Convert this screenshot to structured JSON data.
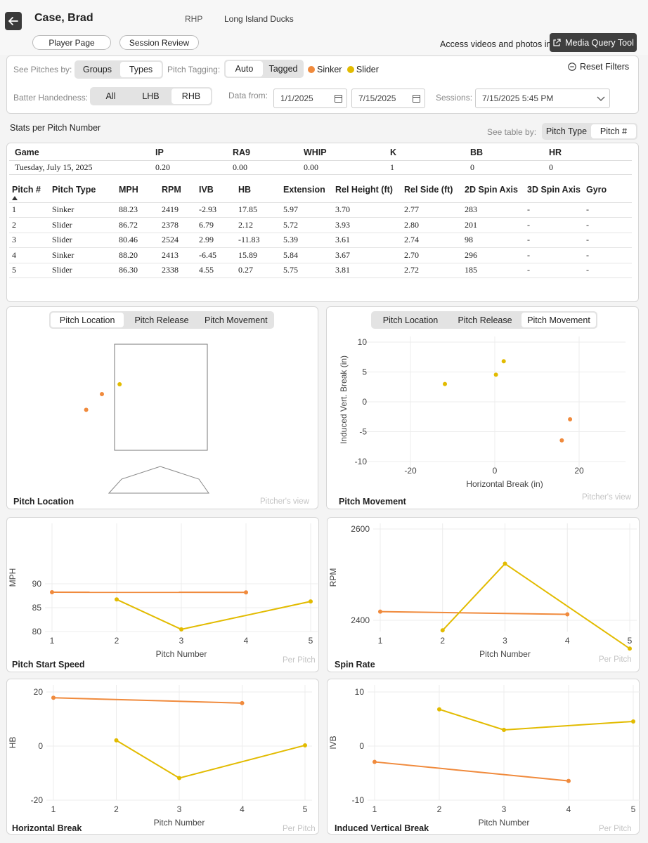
{
  "header": {
    "player_name": "Case, Brad",
    "hand": "RHP",
    "team": "Long Island Ducks",
    "player_page": "Player Page",
    "session_review": "Session Review",
    "access_text": "Access videos and photos in",
    "media_tool": "Media Query Tool"
  },
  "filters": {
    "see_pitches_by": "See Pitches by:",
    "groups": "Groups",
    "types": "Types",
    "pitch_tagging": "Pitch Tagging:",
    "auto": "Auto",
    "tagged": "Tagged",
    "legend": [
      {
        "label": "Sinker",
        "color": "#f08a3c"
      },
      {
        "label": "Slider",
        "color": "#e2bb00"
      }
    ],
    "reset": "Reset Filters",
    "batter_handedness": "Batter Handedness:",
    "hand_all": "All",
    "hand_lhb": "LHB",
    "hand_rhb": "RHB",
    "data_from": "Data from:",
    "date_from": "1/1/2025",
    "date_to": "7/15/2025",
    "sessions": "Sessions:",
    "session_value": "7/15/2025 5:45 PM"
  },
  "stats": {
    "title": "Stats per Pitch Number",
    "see_table_by": "See table by:",
    "pitch_type_btn": "Pitch Type",
    "pitch_num_btn": "Pitch #",
    "game_headers": [
      "Game",
      "IP",
      "RA9",
      "WHIP",
      "K",
      "BB",
      "HR"
    ],
    "game_row": [
      "Tuesday, July 15, 2025",
      "0.20",
      "0.00",
      "0.00",
      "1",
      "0",
      "0"
    ],
    "pitch_headers": [
      "Pitch #",
      "Pitch Type",
      "MPH",
      "RPM",
      "IVB",
      "HB",
      "Extension",
      "Rel Height (ft)",
      "Rel Side (ft)",
      "2D Spin Axis",
      "3D Spin Axis",
      "Gyro"
    ],
    "pitch_rows": [
      [
        "1",
        "Sinker",
        "88.23",
        "2419",
        "-2.93",
        "17.85",
        "5.97",
        "3.70",
        "2.77",
        "283",
        "-",
        "-"
      ],
      [
        "2",
        "Slider",
        "86.72",
        "2378",
        "6.79",
        "2.12",
        "5.72",
        "3.93",
        "2.80",
        "201",
        "-",
        "-"
      ],
      [
        "3",
        "Slider",
        "80.46",
        "2524",
        "2.99",
        "-11.83",
        "5.39",
        "3.61",
        "2.74",
        "98",
        "-",
        "-"
      ],
      [
        "4",
        "Sinker",
        "88.20",
        "2413",
        "-6.45",
        "15.89",
        "5.84",
        "3.67",
        "2.70",
        "296",
        "-",
        "-"
      ],
      [
        "5",
        "Slider",
        "86.30",
        "2338",
        "4.55",
        "0.27",
        "5.75",
        "3.81",
        "2.72",
        "185",
        "-",
        "-"
      ]
    ]
  },
  "tabs": {
    "pitch_location": "Pitch Location",
    "pitch_release": "Pitch Release",
    "pitch_movement": "Pitch Movement"
  },
  "panels": {
    "location_title": "Pitch Location",
    "movement_title": "Pitch Movement",
    "pitchers_view": "Pitcher's view",
    "per_pitch": "Per Pitch"
  },
  "chart_data": [
    {
      "type": "scatter",
      "title": "Pitch Location",
      "series": [
        {
          "name": "Sinker",
          "color": "#f08a3c",
          "points": [
            {
              "x": -1.9,
              "y": 1.1
            },
            {
              "x": -1.5,
              "y": 1.5
            }
          ]
        },
        {
          "name": "Slider",
          "color": "#e2bb00",
          "points": [
            {
              "x": -1.05,
              "y": 1.75
            }
          ]
        }
      ]
    },
    {
      "type": "scatter",
      "title": "Pitch Movement",
      "xlabel": "Horizontal Break (in)",
      "ylabel": "Induced Vert. Break (in)",
      "xticks": [
        -20,
        0,
        20
      ],
      "yticks": [
        10,
        5,
        0,
        -5,
        -10
      ],
      "xlim": [
        -29,
        31
      ],
      "ylim": [
        -10,
        10
      ],
      "series": [
        {
          "name": "Sinker",
          "color": "#f08a3c",
          "points": [
            {
              "x": 17.85,
              "y": -2.93
            },
            {
              "x": 15.89,
              "y": -6.45
            }
          ]
        },
        {
          "name": "Slider",
          "color": "#e2bb00",
          "points": [
            {
              "x": 2.12,
              "y": 6.79
            },
            {
              "x": -11.83,
              "y": 2.99
            },
            {
              "x": 0.27,
              "y": 4.55
            }
          ]
        }
      ]
    },
    {
      "type": "line",
      "title": "Pitch Start Speed",
      "xlabel": "Pitch Number",
      "ylabel": "MPH",
      "xticks": [
        1,
        2,
        3,
        4,
        5
      ],
      "yticks": [
        90,
        85,
        80
      ],
      "ylim": [
        80,
        90
      ],
      "series": [
        {
          "name": "Sinker",
          "color": "#f08a3c",
          "x": [
            1,
            4
          ],
          "y": [
            88.23,
            88.2
          ]
        },
        {
          "name": "Slider",
          "color": "#e2bb00",
          "x": [
            2,
            3,
            5
          ],
          "y": [
            86.72,
            80.46,
            86.3
          ]
        }
      ]
    },
    {
      "type": "line",
      "title": "Spin Rate",
      "xlabel": "Pitch Number",
      "ylabel": "RPM",
      "xticks": [
        1,
        2,
        3,
        4,
        5
      ],
      "yticks": [
        2600,
        2400
      ],
      "ylim": [
        2300,
        2600
      ],
      "series": [
        {
          "name": "Sinker",
          "color": "#f08a3c",
          "x": [
            1,
            4
          ],
          "y": [
            2419,
            2413
          ]
        },
        {
          "name": "Slider",
          "color": "#e2bb00",
          "x": [
            2,
            3,
            5
          ],
          "y": [
            2378,
            2524,
            2338
          ]
        }
      ]
    },
    {
      "type": "line",
      "title": "Horizontal Break",
      "xlabel": "Pitch Number",
      "ylabel": "HB",
      "xticks": [
        1,
        2,
        3,
        4,
        5
      ],
      "yticks": [
        20,
        0,
        -20
      ],
      "ylim": [
        -20,
        20
      ],
      "series": [
        {
          "name": "Sinker",
          "color": "#f08a3c",
          "x": [
            1,
            4
          ],
          "y": [
            17.85,
            15.89
          ]
        },
        {
          "name": "Slider",
          "color": "#e2bb00",
          "x": [
            2,
            3,
            5
          ],
          "y": [
            2.12,
            -11.83,
            0.27
          ]
        }
      ]
    },
    {
      "type": "line",
      "title": "Induced Vertical Break",
      "xlabel": "Pitch Number",
      "ylabel": "IVB",
      "xticks": [
        1,
        2,
        3,
        4,
        5
      ],
      "yticks": [
        10,
        0,
        -10
      ],
      "ylim": [
        -10,
        10
      ],
      "series": [
        {
          "name": "Sinker",
          "color": "#f08a3c",
          "x": [
            1,
            4
          ],
          "y": [
            -2.93,
            -6.45
          ]
        },
        {
          "name": "Slider",
          "color": "#e2bb00",
          "x": [
            2,
            3,
            5
          ],
          "y": [
            6.79,
            2.99,
            4.55
          ]
        }
      ]
    }
  ]
}
